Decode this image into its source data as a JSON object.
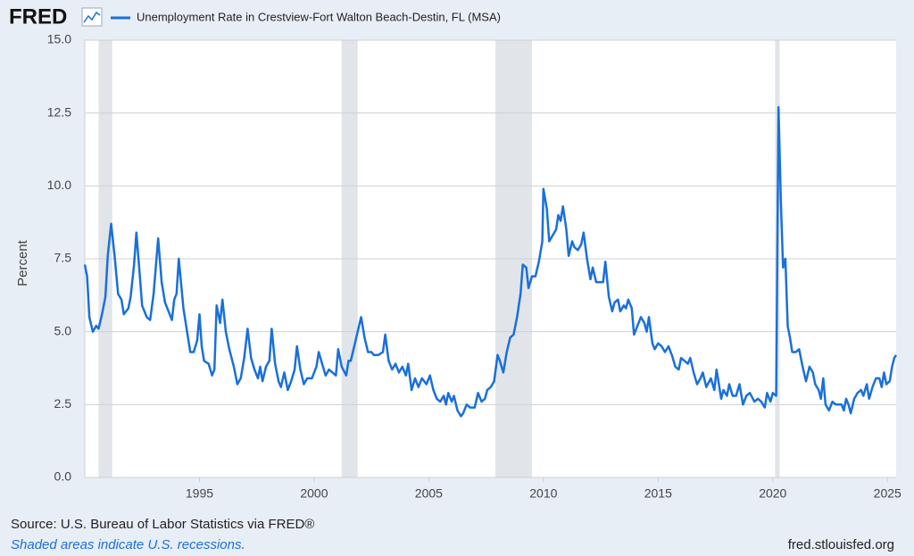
{
  "logo": "FRED",
  "chart_data": {
    "type": "line",
    "y_label": "Percent",
    "source": "Source: U.S. Bureau of Labor Statistics via FRED®",
    "note": "Shaded areas indicate U.S. recessions.",
    "site": "fred.stlouisfed.org",
    "grid": true,
    "recessions": [
      [
        1990.6,
        1991.2
      ],
      [
        2001.2,
        2001.9
      ],
      [
        2007.9,
        2009.5
      ],
      [
        2020.1,
        2020.3
      ]
    ],
    "xlim": [
      1990.0,
      2025.38
    ],
    "xticks": [
      1995,
      2000,
      2005,
      2010,
      2015,
      2020,
      2025
    ],
    "ylim": [
      0,
      15
    ],
    "yticks": [
      {
        "value": 0,
        "label": "0.0"
      },
      {
        "value": 2.5,
        "label": "2.5"
      },
      {
        "value": 5,
        "label": "5.0"
      },
      {
        "value": 7.5,
        "label": "7.5"
      },
      {
        "value": 10,
        "label": "10.0"
      },
      {
        "value": 12.5,
        "label": "12.5"
      },
      {
        "value": 15,
        "label": "15.0"
      }
    ],
    "x": [
      1990.0,
      1990.1,
      1990.2,
      1990.35,
      1990.5,
      1990.6,
      1990.75,
      1990.9,
      1991.0,
      1991.15,
      1991.3,
      1991.45,
      1991.6,
      1991.7,
      1991.9,
      1992.0,
      1992.15,
      1992.25,
      1992.4,
      1992.5,
      1992.7,
      1992.85,
      1993.0,
      1993.2,
      1993.35,
      1993.5,
      1993.65,
      1993.8,
      1993.9,
      1994.0,
      1994.1,
      1994.3,
      1994.5,
      1994.6,
      1994.75,
      1994.9,
      1995.0,
      1995.1,
      1995.2,
      1995.4,
      1995.55,
      1995.65,
      1995.75,
      1995.9,
      1996.0,
      1996.15,
      1996.3,
      1996.5,
      1996.65,
      1996.8,
      1996.95,
      1997.1,
      1997.25,
      1997.4,
      1997.55,
      1997.65,
      1997.75,
      1997.9,
      1998.05,
      1998.15,
      1998.3,
      1998.45,
      1998.55,
      1998.7,
      1998.85,
      1999.0,
      1999.15,
      1999.25,
      1999.4,
      1999.55,
      1999.7,
      1999.9,
      2000.1,
      2000.2,
      2000.35,
      2000.5,
      2000.65,
      2000.8,
      2000.95,
      2001.05,
      2001.2,
      2001.4,
      2001.5,
      2001.6,
      2001.75,
      2001.9,
      2002.05,
      2002.2,
      2002.35,
      2002.5,
      2002.6,
      2002.8,
      2003.0,
      2003.1,
      2003.25,
      2003.4,
      2003.55,
      2003.7,
      2003.85,
      2004.0,
      2004.1,
      2004.25,
      2004.4,
      2004.55,
      2004.7,
      2004.9,
      2005.05,
      2005.2,
      2005.35,
      2005.5,
      2005.65,
      2005.75,
      2005.85,
      2006.0,
      2006.1,
      2006.25,
      2006.4,
      2006.5,
      2006.65,
      2006.8,
      2007.0,
      2007.15,
      2007.3,
      2007.45,
      2007.55,
      2007.7,
      2007.85,
      2008.0,
      2008.1,
      2008.25,
      2008.4,
      2008.55,
      2008.7,
      2008.85,
      2009.0,
      2009.1,
      2009.25,
      2009.35,
      2009.5,
      2009.65,
      2009.8,
      2009.95,
      2010.0,
      2010.15,
      2010.25,
      2010.4,
      2010.55,
      2010.65,
      2010.75,
      2010.85,
      2011.0,
      2011.1,
      2011.25,
      2011.35,
      2011.5,
      2011.65,
      2011.75,
      2011.9,
      2012.05,
      2012.15,
      2012.3,
      2012.45,
      2012.6,
      2012.7,
      2012.85,
      2013.0,
      2013.1,
      2013.25,
      2013.35,
      2013.5,
      2013.6,
      2013.7,
      2013.85,
      2013.95,
      2014.1,
      2014.25,
      2014.4,
      2014.5,
      2014.6,
      2014.75,
      2014.85,
      2015.0,
      2015.15,
      2015.3,
      2015.45,
      2015.6,
      2015.75,
      2015.9,
      2016.0,
      2016.15,
      2016.3,
      2016.4,
      2016.55,
      2016.7,
      2016.85,
      2016.95,
      2017.1,
      2017.3,
      2017.45,
      2017.55,
      2017.75,
      2017.85,
      2018.0,
      2018.1,
      2018.25,
      2018.4,
      2018.55,
      2018.7,
      2018.85,
      2019.0,
      2019.2,
      2019.35,
      2019.5,
      2019.65,
      2019.75,
      2019.9,
      2020.0,
      2020.15,
      2020.25,
      2020.35,
      2020.45,
      2020.55,
      2020.65,
      2020.75,
      2020.85,
      2021.0,
      2021.15,
      2021.3,
      2021.45,
      2021.6,
      2021.75,
      2021.85,
      2022.0,
      2022.1,
      2022.2,
      2022.3,
      2022.45,
      2022.6,
      2022.75,
      2022.9,
      2023.0,
      2023.1,
      2023.2,
      2023.3,
      2023.4,
      2023.55,
      2023.7,
      2023.85,
      2023.95,
      2024.1,
      2024.2,
      2024.35,
      2024.5,
      2024.65,
      2024.75,
      2024.85,
      2024.95,
      2025.1,
      2025.2,
      2025.3,
      2025.38
    ],
    "series": [
      {
        "name": "Unemployment Rate in Crestview-Fort Walton Beach-Destin, FL (MSA)",
        "color": "#1a6fdb",
        "values": [
          7.3,
          6.9,
          5.5,
          5.0,
          5.2,
          5.1,
          5.6,
          6.2,
          7.6,
          8.7,
          7.6,
          6.3,
          6.1,
          5.6,
          5.8,
          6.2,
          7.3,
          8.4,
          6.9,
          5.9,
          5.5,
          5.4,
          6.3,
          8.2,
          6.7,
          6.0,
          5.7,
          5.4,
          6.1,
          6.3,
          7.5,
          5.8,
          4.8,
          4.3,
          4.3,
          4.7,
          5.6,
          4.5,
          4.0,
          3.9,
          3.5,
          3.7,
          5.9,
          5.3,
          6.1,
          5.0,
          4.4,
          3.8,
          3.2,
          3.4,
          4.1,
          5.1,
          4.1,
          3.7,
          3.4,
          3.8,
          3.3,
          3.8,
          4.0,
          5.1,
          3.9,
          3.3,
          3.1,
          3.6,
          3.0,
          3.3,
          3.7,
          4.5,
          3.7,
          3.2,
          3.4,
          3.4,
          3.8,
          4.3,
          3.9,
          3.5,
          3.7,
          3.6,
          3.5,
          4.4,
          3.8,
          3.5,
          4.0,
          4.0,
          4.5,
          5.0,
          5.5,
          4.8,
          4.3,
          4.3,
          4.2,
          4.2,
          4.3,
          4.9,
          4.0,
          3.7,
          3.9,
          3.6,
          3.8,
          3.5,
          3.9,
          3.0,
          3.4,
          3.1,
          3.4,
          3.2,
          3.5,
          3.0,
          2.7,
          2.6,
          2.8,
          2.5,
          2.9,
          2.6,
          2.8,
          2.3,
          2.1,
          2.2,
          2.5,
          2.4,
          2.4,
          2.9,
          2.6,
          2.7,
          3.0,
          3.1,
          3.3,
          4.2,
          4.0,
          3.6,
          4.3,
          4.8,
          4.9,
          5.5,
          6.3,
          7.3,
          7.2,
          6.5,
          6.9,
          6.9,
          7.4,
          8.1,
          9.9,
          9.2,
          8.1,
          8.3,
          8.5,
          9.0,
          8.8,
          9.3,
          8.5,
          7.6,
          8.1,
          7.9,
          7.8,
          8.0,
          8.4,
          7.5,
          6.8,
          7.2,
          6.7,
          6.7,
          6.7,
          7.4,
          6.2,
          5.7,
          6.0,
          6.1,
          5.7,
          5.9,
          5.8,
          6.1,
          5.8,
          4.9,
          5.2,
          5.5,
          5.3,
          5.0,
          5.5,
          4.6,
          4.4,
          4.6,
          4.5,
          4.3,
          4.5,
          4.2,
          3.8,
          3.7,
          4.1,
          4.0,
          3.9,
          4.1,
          3.6,
          3.2,
          3.4,
          3.6,
          3.1,
          3.4,
          3.0,
          3.7,
          2.7,
          3.0,
          2.8,
          3.2,
          2.8,
          2.8,
          3.2,
          2.5,
          2.8,
          2.9,
          2.6,
          2.7,
          2.6,
          2.4,
          2.9,
          2.6,
          2.9,
          2.8,
          12.7,
          9.5,
          7.2,
          7.5,
          5.2,
          4.8,
          4.3,
          4.3,
          4.4,
          3.8,
          3.3,
          3.8,
          3.6,
          3.2,
          3.0,
          2.7,
          3.4,
          2.5,
          2.3,
          2.6,
          2.5,
          2.5,
          2.5,
          2.3,
          2.7,
          2.5,
          2.2,
          2.7,
          2.9,
          3.0,
          2.8,
          3.2,
          2.7,
          3.1,
          3.4,
          3.4,
          3.1,
          3.6,
          3.2,
          3.3,
          3.8,
          4.1,
          4.2
        ]
      }
    ]
  }
}
